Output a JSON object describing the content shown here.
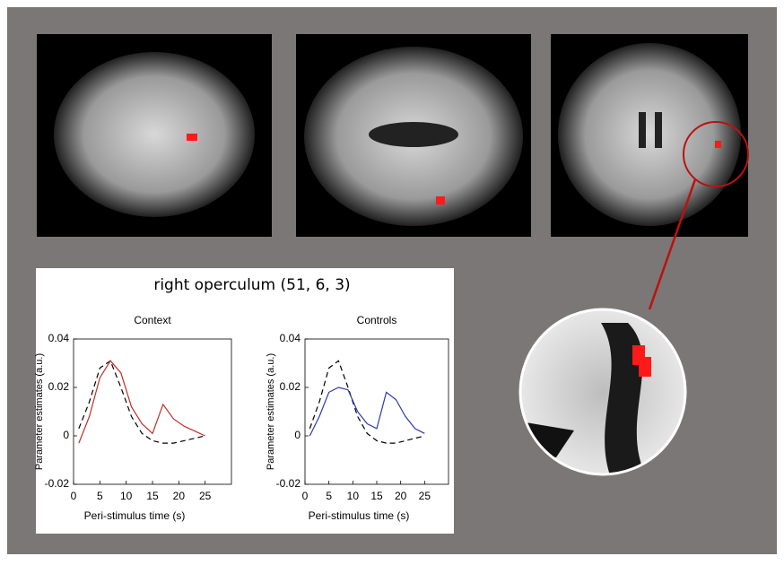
{
  "figure_title": "right operculum (51, 6, 3)",
  "chart_data": [
    {
      "type": "line",
      "title": "Context",
      "xlabel": "Peri-stimulus time (s)",
      "ylabel": "Parameter estimates (a.u.)",
      "x": [
        1,
        3,
        5,
        7,
        9,
        11,
        13,
        15,
        17,
        19,
        21,
        23,
        25
      ],
      "series": [
        {
          "color": "#000000",
          "style": "dashed",
          "values": [
            0.003,
            0.014,
            0.028,
            0.031,
            0.02,
            0.008,
            0.001,
            -0.002,
            -0.003,
            -0.003,
            -0.002,
            -0.001,
            0
          ]
        },
        {
          "color": "#c0302a",
          "style": "solid",
          "values": [
            -0.003,
            0.008,
            0.024,
            0.031,
            0.026,
            0.012,
            0.005,
            0.001,
            0.013,
            0.007,
            0.004,
            0.002,
            0
          ]
        }
      ],
      "xlim": [
        0,
        30
      ],
      "xticks": [
        0,
        5,
        10,
        15,
        20,
        25
      ],
      "ylim": [
        -0.02,
        0.04
      ],
      "yticks": [
        -0.02,
        0,
        0.02,
        0.04
      ]
    },
    {
      "type": "line",
      "title": "Controls",
      "xlabel": "Peri-stimulus time (s)",
      "ylabel": "Parameter estimates (a.u.)",
      "x": [
        1,
        3,
        5,
        7,
        9,
        11,
        13,
        15,
        17,
        19,
        21,
        23,
        25
      ],
      "series": [
        {
          "color": "#000000",
          "style": "dashed",
          "values": [
            0.003,
            0.014,
            0.028,
            0.031,
            0.02,
            0.008,
            0.001,
            -0.002,
            -0.003,
            -0.003,
            -0.002,
            -0.001,
            0
          ]
        },
        {
          "color": "#2a3aa8",
          "style": "solid",
          "values": [
            0,
            0.008,
            0.018,
            0.02,
            0.019,
            0.01,
            0.005,
            0.003,
            0.018,
            0.015,
            0.008,
            0.003,
            0.001
          ]
        }
      ],
      "xlim": [
        0,
        30
      ],
      "xticks": [
        0,
        5,
        10,
        15,
        20,
        25
      ],
      "ylim": [
        -0.02,
        0.04
      ],
      "yticks": [
        -0.02,
        0,
        0.02,
        0.04
      ]
    }
  ]
}
